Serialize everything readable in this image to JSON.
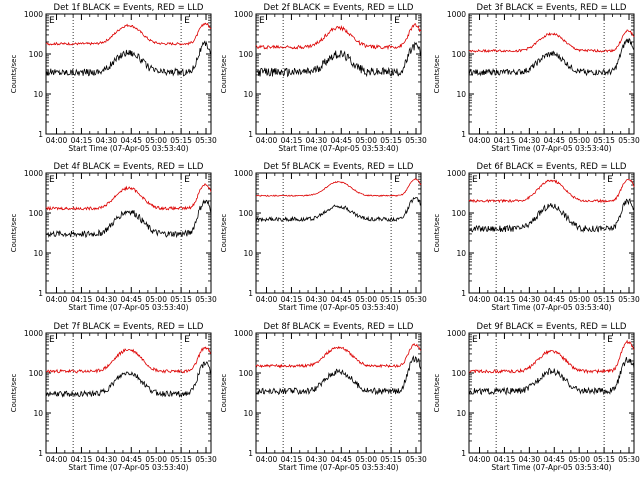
{
  "chart_data": [
    {
      "type": "line",
      "title": "Det 1f BLACK = Events, RED = LLD",
      "xlabel": "Start Time (07-Apr-05 03:53:40)",
      "ylabel": "Counts/sec",
      "ylim": [
        1,
        1000
      ],
      "y_scale": "log",
      "x_ticks": [
        "04:00",
        "04:15",
        "04:30",
        "04:45",
        "05:00",
        "05:15",
        "05:30"
      ],
      "y_ticks": [
        "1",
        "10",
        "100",
        "1000"
      ],
      "markers": [
        "04:10",
        "05:15"
      ],
      "flags": [
        "E",
        "E"
      ],
      "series": [
        {
          "color": "#000000",
          "base": 35,
          "peak1": 110,
          "peak2": 170,
          "noise": 0.18
        },
        {
          "color": "#dd0000",
          "base": 180,
          "peak1": 520,
          "peak2": 580,
          "noise": 0.06
        }
      ]
    },
    {
      "type": "line",
      "title": "Det 2f BLACK = Events, RED = LLD",
      "xlabel": "Start Time (07-Apr-05 03:53:40)",
      "ylabel": "Counts/sec",
      "ylim": [
        1,
        1000
      ],
      "y_scale": "log",
      "x_ticks": [
        "04:00",
        "04:15",
        "04:30",
        "04:45",
        "05:00",
        "05:15",
        "05:30"
      ],
      "y_ticks": [
        "1",
        "10",
        "100",
        "1000"
      ],
      "markers": [
        "04:10",
        "05:15"
      ],
      "flags": [
        "E",
        "E"
      ],
      "series": [
        {
          "color": "#000000",
          "base": 35,
          "peak1": 100,
          "peak2": 160,
          "noise": 0.22
        },
        {
          "color": "#dd0000",
          "base": 150,
          "peak1": 450,
          "peak2": 520,
          "noise": 0.09
        }
      ]
    },
    {
      "type": "line",
      "title": "Det 3f BLACK = Events, RED = LLD",
      "xlabel": "Start Time (07-Apr-05 03:53:40)",
      "ylabel": "Counts/sec",
      "ylim": [
        1,
        1000
      ],
      "y_scale": "log",
      "x_ticks": [
        "04:00",
        "04:15",
        "04:30",
        "04:45",
        "05:00",
        "05:15",
        "05:30"
      ],
      "y_ticks": [
        "1",
        "10",
        "100",
        "1000"
      ],
      "markers": [
        "04:10",
        "05:15"
      ],
      "flags": [
        "",
        ""
      ],
      "series": [
        {
          "color": "#000000",
          "base": 35,
          "peak1": 100,
          "peak2": 220,
          "noise": 0.15
        },
        {
          "color": "#dd0000",
          "base": 120,
          "peak1": 320,
          "peak2": 380,
          "noise": 0.06
        }
      ]
    },
    {
      "type": "line",
      "title": "Det 4f BLACK = Events, RED = LLD",
      "xlabel": "Start Time (07-Apr-05 03:53:40)",
      "ylabel": "Counts/sec",
      "ylim": [
        1,
        1000
      ],
      "y_scale": "log",
      "x_ticks": [
        "04:00",
        "04:15",
        "04:30",
        "04:45",
        "05:00",
        "05:15",
        "05:30"
      ],
      "y_ticks": [
        "1",
        "10",
        "100",
        "1000"
      ],
      "markers": [
        "04:10",
        "05:15"
      ],
      "flags": [
        "E",
        "E"
      ],
      "series": [
        {
          "color": "#000000",
          "base": 30,
          "peak1": 110,
          "peak2": 190,
          "noise": 0.16
        },
        {
          "color": "#dd0000",
          "base": 130,
          "peak1": 420,
          "peak2": 520,
          "noise": 0.07
        }
      ]
    },
    {
      "type": "line",
      "title": "Det 5f BLACK = Events, RED = LLD",
      "xlabel": "Start Time (07-Apr-05 03:53:40)",
      "ylabel": "Counts/sec",
      "ylim": [
        1,
        1000
      ],
      "y_scale": "log",
      "x_ticks": [
        "04:00",
        "04:15",
        "04:30",
        "04:45",
        "05:00",
        "05:15",
        "05:30"
      ],
      "y_ticks": [
        "1",
        "10",
        "100",
        "1000"
      ],
      "markers": [
        "04:10",
        "05:15"
      ],
      "flags": [
        "",
        "E"
      ],
      "series": [
        {
          "color": "#000000",
          "base": 70,
          "peak1": 150,
          "peak2": 230,
          "noise": 0.1
        },
        {
          "color": "#dd0000",
          "base": 270,
          "peak1": 600,
          "peak2": 700,
          "noise": 0.03
        }
      ]
    },
    {
      "type": "line",
      "title": "Det 6f BLACK = Events, RED = LLD",
      "xlabel": "Start Time (07-Apr-05 03:53:40)",
      "ylabel": "Counts/sec",
      "ylim": [
        1,
        1000
      ],
      "y_scale": "log",
      "x_ticks": [
        "04:00",
        "04:15",
        "04:30",
        "04:45",
        "05:00",
        "05:15",
        "05:30"
      ],
      "y_ticks": [
        "1",
        "10",
        "100",
        "1000"
      ],
      "markers": [
        "04:10",
        "05:15"
      ],
      "flags": [
        "E",
        "E"
      ],
      "series": [
        {
          "color": "#000000",
          "base": 40,
          "peak1": 150,
          "peak2": 200,
          "noise": 0.16
        },
        {
          "color": "#dd0000",
          "base": 200,
          "peak1": 650,
          "peak2": 700,
          "noise": 0.06
        }
      ]
    },
    {
      "type": "line",
      "title": "Det 7f BLACK = Events, RED = LLD",
      "xlabel": "Start Time (07-Apr-05 03:53:40)",
      "ylabel": "Counts/sec",
      "ylim": [
        1,
        1000
      ],
      "y_scale": "log",
      "x_ticks": [
        "04:00",
        "04:15",
        "04:30",
        "04:45",
        "05:00",
        "05:15",
        "05:30"
      ],
      "y_ticks": [
        "1",
        "10",
        "100",
        "1000"
      ],
      "markers": [
        "04:10",
        "05:15"
      ],
      "flags": [
        "E",
        "E"
      ],
      "series": [
        {
          "color": "#000000",
          "base": 30,
          "peak1": 100,
          "peak2": 170,
          "noise": 0.14
        },
        {
          "color": "#dd0000",
          "base": 110,
          "peak1": 380,
          "peak2": 430,
          "noise": 0.08
        }
      ]
    },
    {
      "type": "line",
      "title": "Det 8f BLACK = Events, RED = LLD",
      "xlabel": "Start Time (07-Apr-05 03:53:40)",
      "ylabel": "Counts/sec",
      "ylim": [
        1,
        1000
      ],
      "y_scale": "log",
      "x_ticks": [
        "04:00",
        "04:15",
        "04:30",
        "04:45",
        "05:00",
        "05:15",
        "05:30"
      ],
      "y_ticks": [
        "1",
        "10",
        "100",
        "1000"
      ],
      "markers": [
        "04:10",
        "05:15"
      ],
      "flags": [
        "",
        ""
      ],
      "series": [
        {
          "color": "#000000",
          "base": 35,
          "peak1": 110,
          "peak2": 230,
          "noise": 0.16
        },
        {
          "color": "#dd0000",
          "base": 150,
          "peak1": 440,
          "peak2": 520,
          "noise": 0.07
        }
      ]
    },
    {
      "type": "line",
      "title": "Det 9f BLACK = Events, RED = LLD",
      "xlabel": "Start Time (07-Apr-05 03:53:40)",
      "ylabel": "Counts/sec",
      "ylim": [
        1,
        1000
      ],
      "y_scale": "log",
      "x_ticks": [
        "04:00",
        "04:15",
        "04:30",
        "04:45",
        "05:00",
        "05:15",
        "05:30"
      ],
      "y_ticks": [
        "1",
        "10",
        "100",
        "1000"
      ],
      "markers": [
        "04:10",
        "05:15"
      ],
      "flags": [
        "E",
        "E"
      ],
      "series": [
        {
          "color": "#000000",
          "base": 35,
          "peak1": 110,
          "peak2": 220,
          "noise": 0.16
        },
        {
          "color": "#dd0000",
          "base": 110,
          "peak1": 350,
          "peak2": 600,
          "noise": 0.08
        }
      ]
    }
  ]
}
